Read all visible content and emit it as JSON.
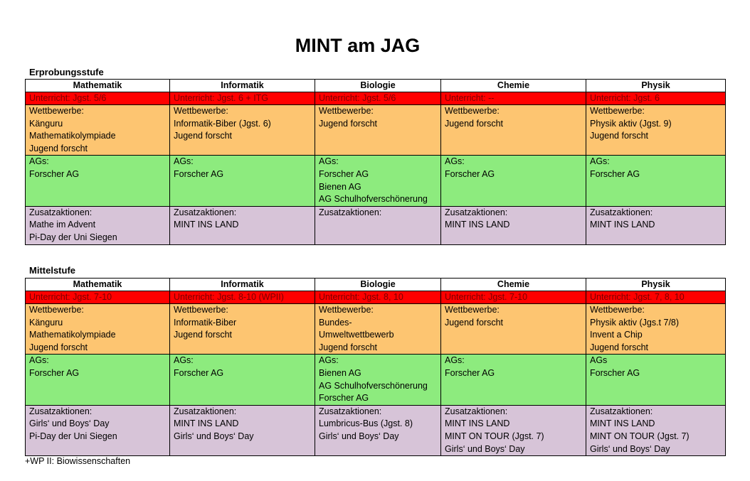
{
  "title": "MINT am JAG",
  "subjects": [
    "Mathematik",
    "Informatik",
    "Biologie",
    "Chemie",
    "Physik"
  ],
  "sections": [
    {
      "label": "Erprobungsstufe",
      "unterricht": [
        "Unterricht: Jgst. 5/6",
        "Unterricht: Jgst. 6 + ITG",
        "Unterricht: Jgst. 5/6",
        "Unterricht: --",
        "Unterricht: Jgst. 6"
      ],
      "wettbewerbe": [
        [
          "Wettbewerbe:",
          "Känguru",
          "Mathematikolympiade",
          "Jugend forscht"
        ],
        [
          "Wettbewerbe:",
          "Informatik-Biber (Jgst. 6)",
          "Jugend forscht"
        ],
        [
          "Wettbewerbe:",
          "Jugend forscht"
        ],
        [
          "Wettbewerbe:",
          "Jugend forscht"
        ],
        [
          "Wettbewerbe:",
          "Physik aktiv (Jgst. 9)",
          "Jugend forscht"
        ]
      ],
      "ags": [
        [
          "AGs:",
          "Forscher AG"
        ],
        [
          "AGs:",
          "Forscher AG"
        ],
        [
          "AGs:",
          "Forscher AG",
          "Bienen AG",
          "AG Schulhofverschönerung"
        ],
        [
          "AGs:",
          "Forscher AG"
        ],
        [
          "AGs:",
          "Forscher AG"
        ]
      ],
      "zusatz": [
        [
          "Zusatzaktionen:",
          "Mathe im Advent",
          "Pi-Day der Uni Siegen"
        ],
        [
          "Zusatzaktionen:",
          "MINT INS LAND"
        ],
        [
          "Zusatzaktionen:"
        ],
        [
          "Zusatzaktionen:",
          "MINT INS LAND"
        ],
        [
          "Zusatzaktionen:",
          "MINT INS LAND"
        ]
      ]
    },
    {
      "label": "Mittelstufe",
      "unterricht": [
        "Unterricht: Jgst. 7-10",
        "Unterricht: Jgst. 8-10 (WPII)",
        "Unterricht: Jgst. 8, 10",
        "Unterricht: Jgst. 7-10",
        "Unterricht: Jgst. 7, 8, 10"
      ],
      "wettbewerbe": [
        [
          "Wettbewerbe:",
          "Känguru",
          "Mathematikolympiade",
          "Jugend forscht"
        ],
        [
          "Wettbewerbe:",
          "Informatik-Biber",
          "Jugend forscht"
        ],
        [
          "Wettbewerbe:",
          "Bundes-",
          "Umweltwettbewerb",
          "Jugend forscht"
        ],
        [
          "Wettbewerbe:",
          "Jugend forscht"
        ],
        [
          "Wettbewerbe:",
          "Physik aktiv (Jgs.t 7/8)",
          "Invent a Chip",
          "Jugend forscht"
        ]
      ],
      "ags": [
        [
          "AGs:",
          "Forscher AG"
        ],
        [
          "AGs:",
          "Forscher AG"
        ],
        [
          "AGs:",
          "Bienen AG",
          "AG Schulhofverschönerung",
          "Forscher AG"
        ],
        [
          "AGs:",
          "Forscher AG"
        ],
        [
          "AGs",
          "Forscher AG"
        ]
      ],
      "zusatz": [
        [
          "Zusatzaktionen:",
          "Girls‘ und Boys‘ Day",
          "Pi-Day der Uni Siegen"
        ],
        [
          "Zusatzaktionen:",
          "MINT INS LAND",
          "Girls‘ und Boys‘ Day"
        ],
        [
          "Zusatzaktionen:",
          "Lumbricus-Bus (Jgst. 8)",
          "Girls‘ und Boys‘ Day"
        ],
        [
          "Zusatzaktionen:",
          "MINT INS LAND",
          "MINT ON TOUR (Jgst. 7)",
          "Girls‘ und Boys‘ Day"
        ],
        [
          "Zusatzaktionen:",
          "MINT INS LAND",
          "MINT ON TOUR (Jgst. 7)",
          "Girls‘ und Boys‘ Day"
        ]
      ]
    }
  ],
  "footnote": "+WP II: Biowissenschaften"
}
